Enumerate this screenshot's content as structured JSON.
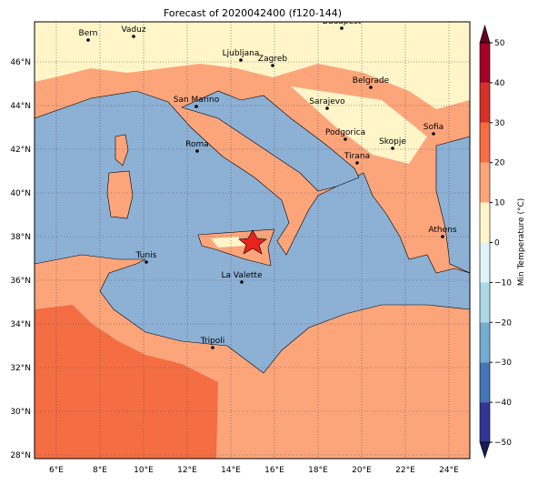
{
  "title": "Forecast of 2020042400 (f120-144)",
  "map": {
    "lon_ticks": [
      {
        "value": 6,
        "label": "6°E"
      },
      {
        "value": 8,
        "label": "8°E"
      },
      {
        "value": 10,
        "label": "10°E"
      },
      {
        "value": 12,
        "label": "12°E"
      },
      {
        "value": 14,
        "label": "14°E"
      },
      {
        "value": 16,
        "label": "16°E"
      },
      {
        "value": 18,
        "label": "18°E"
      },
      {
        "value": 20,
        "label": "20°E"
      },
      {
        "value": 22,
        "label": "22°E"
      },
      {
        "value": 24,
        "label": "24°E"
      }
    ],
    "lat_ticks": [
      {
        "value": 28,
        "label": "28°N"
      },
      {
        "value": 30,
        "label": "30°N"
      },
      {
        "value": 32,
        "label": "32°N"
      },
      {
        "value": 34,
        "label": "34°N"
      },
      {
        "value": 36,
        "label": "36°N"
      },
      {
        "value": 38,
        "label": "38°N"
      },
      {
        "value": 40,
        "label": "40°N"
      },
      {
        "value": 42,
        "label": "42°N"
      },
      {
        "value": 44,
        "label": "44°N"
      },
      {
        "value": 46,
        "label": "46°N"
      }
    ],
    "cities": [
      "Bern",
      "Vaduz",
      "Budapest",
      "Ljubljana",
      "Zagreb",
      "Belgrade",
      "San Marino",
      "Sarajevo",
      "Sofia",
      "Podgorica",
      "Skopje",
      "Roma",
      "Tirana",
      "Athens",
      "Tunis",
      "La Valette",
      "Tripoli"
    ],
    "colorbar": {
      "label": "Min Temperature (°C)",
      "ticks": [
        {
          "value": -50,
          "label": "−50"
        },
        {
          "value": -40,
          "label": "−40"
        },
        {
          "value": -30,
          "label": "−30"
        },
        {
          "value": -20,
          "label": "−20"
        },
        {
          "value": -10,
          "label": "−10"
        },
        0,
        10,
        20,
        30,
        40,
        50
      ]
    }
  }
}
